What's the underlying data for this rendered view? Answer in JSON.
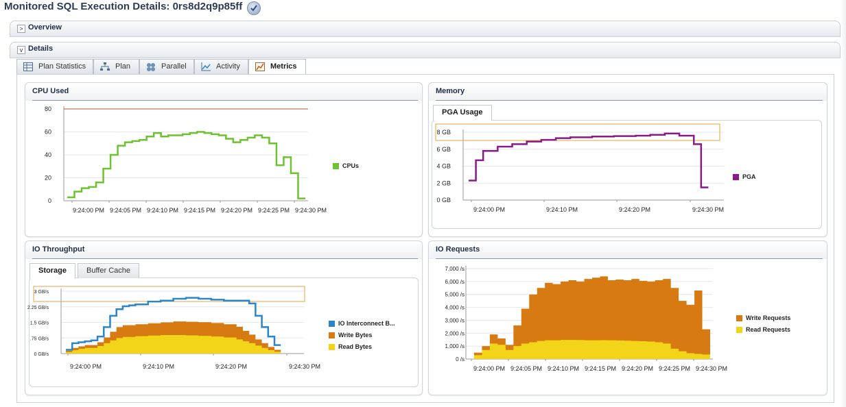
{
  "header": {
    "title": "Monitored SQL Execution Details: 0rs8d2q9p85ff",
    "status_icon": "check-icon"
  },
  "sections": {
    "overview": {
      "label": "Overview",
      "twisty": ">"
    },
    "details": {
      "label": "Details",
      "twisty": "v"
    }
  },
  "tabs": [
    {
      "label": "Plan Statistics",
      "icon": "table-icon"
    },
    {
      "label": "Plan",
      "icon": "tree-icon"
    },
    {
      "label": "Parallel",
      "icon": "parallel-icon"
    },
    {
      "label": "Activity",
      "icon": "line-chart-icon"
    },
    {
      "label": "Metrics",
      "icon": "metrics-icon",
      "active": true
    }
  ],
  "panels": {
    "cpu": {
      "title": "CPU Used"
    },
    "memory": {
      "title": "Memory",
      "subtabs": [
        "PGA Usage"
      ]
    },
    "io_throughput": {
      "title": "IO Throughput",
      "subtabs": [
        "Storage",
        "Buffer Cache"
      ]
    },
    "io_requests": {
      "title": "IO Requests"
    }
  },
  "colors": {
    "cpu_green": "#6cc22f",
    "cpu_limit": "#c0561f",
    "pga_purple": "#8a1a8a",
    "io_blue": "#2a86c9",
    "write_orange": "#d87a12",
    "read_yellow": "#f2d419",
    "highlight": "#e7a33c"
  },
  "chart_data": [
    {
      "type": "line",
      "panel": "CPU Used",
      "x": [
        "9:24:00 PM",
        "9:24:05 PM",
        "9:24:10 PM",
        "9:24:15 PM",
        "9:24:20 PM",
        "9:24:25 PM",
        "9:24:30 PM"
      ],
      "yticks": [
        "80",
        "60",
        "40",
        "20",
        "0"
      ],
      "ylim": [
        0,
        80
      ],
      "series": [
        {
          "name": "CPUs",
          "color": "#6cc22f",
          "points": [
            [
              -2,
              3
            ],
            [
              -1,
              8
            ],
            [
              0,
              11
            ],
            [
              1,
              12
            ],
            [
              2,
              16
            ],
            [
              3,
              28
            ],
            [
              4,
              40
            ],
            [
              5,
              48
            ],
            [
              6,
              51
            ],
            [
              7,
              52
            ],
            [
              8,
              53
            ],
            [
              9,
              56
            ],
            [
              10,
              59
            ],
            [
              11,
              56
            ],
            [
              12,
              57
            ],
            [
              13,
              57
            ],
            [
              14,
              58
            ],
            [
              15,
              59
            ],
            [
              16,
              60
            ],
            [
              17,
              59
            ],
            [
              18,
              58
            ],
            [
              19,
              57
            ],
            [
              20,
              54
            ],
            [
              21,
              51
            ],
            [
              22,
              53
            ],
            [
              23,
              55
            ],
            [
              24,
              57
            ],
            [
              25,
              55
            ],
            [
              26,
              50
            ],
            [
              27,
              31
            ],
            [
              28,
              38
            ],
            [
              29,
              24
            ],
            [
              30,
              2
            ],
            [
              31,
              2
            ]
          ]
        }
      ],
      "limit_line": 80
    },
    {
      "type": "line",
      "panel": "Memory",
      "x": [
        "9:24:00 PM",
        "9:24:10 PM",
        "9:24:20 PM",
        "9:24:30 PM"
      ],
      "yticks": [
        "8 GB",
        "6 GB",
        "4 GB",
        "2 GB",
        "0 GB"
      ],
      "ylim": [
        0,
        8
      ],
      "series": [
        {
          "name": "PGA",
          "color": "#8a1a8a",
          "points": [
            [
              -3,
              2.3
            ],
            [
              -2,
              4.7
            ],
            [
              -1,
              5.8
            ],
            [
              1,
              6.3
            ],
            [
              3,
              6.6
            ],
            [
              5,
              6.9
            ],
            [
              7,
              7.1
            ],
            [
              9,
              7.3
            ],
            [
              11,
              7.4
            ],
            [
              14,
              7.5
            ],
            [
              17,
              7.55
            ],
            [
              20,
              7.6
            ],
            [
              22,
              7.7
            ],
            [
              24,
              7.85
            ],
            [
              26,
              7.6
            ],
            [
              28,
              6.6
            ],
            [
              29,
              1.5
            ],
            [
              30,
              1.5
            ]
          ]
        }
      ]
    },
    {
      "type": "area",
      "panel": "IO Throughput",
      "subtab": "Storage",
      "x": [
        "9:24:00 PM",
        "9:24:10 PM",
        "9:24:20 PM",
        "9:24:30 PM"
      ],
      "yticks": [
        "3 GB/s",
        "2.25 GB/s",
        "1.5 GB/s",
        ".75 GB/s",
        "0 GB/s"
      ],
      "ylim": [
        0,
        3.3
      ],
      "series": [
        {
          "name": "IO Interconnect B...",
          "color": "#2a86c9",
          "points": [
            [
              -3,
              0.2
            ],
            [
              -2,
              0.55
            ],
            [
              -1,
              0.6
            ],
            [
              0,
              0.65
            ],
            [
              1,
              0.7
            ],
            [
              2,
              0.9
            ],
            [
              3,
              1.4
            ],
            [
              4,
              2.0
            ],
            [
              5,
              2.35
            ],
            [
              6,
              2.5
            ],
            [
              7,
              2.55
            ],
            [
              8,
              2.6
            ],
            [
              10,
              2.75
            ],
            [
              12,
              2.8
            ],
            [
              14,
              2.9
            ],
            [
              16,
              2.95
            ],
            [
              18,
              2.9
            ],
            [
              20,
              2.85
            ],
            [
              22,
              2.8
            ],
            [
              24,
              2.8
            ],
            [
              26,
              2.65
            ],
            [
              27,
              2.0
            ],
            [
              28,
              1.4
            ],
            [
              29,
              0.9
            ],
            [
              30,
              0.45
            ]
          ]
        },
        {
          "name": "Write Bytes",
          "color": "#d87a12",
          "points": [
            [
              -3,
              0.15
            ],
            [
              -2,
              0.3
            ],
            [
              -1,
              0.38
            ],
            [
              0,
              0.45
            ],
            [
              2,
              0.6
            ],
            [
              3,
              0.85
            ],
            [
              4,
              1.15
            ],
            [
              5,
              1.4
            ],
            [
              6,
              1.5
            ],
            [
              8,
              1.55
            ],
            [
              10,
              1.6
            ],
            [
              12,
              1.65
            ],
            [
              14,
              1.7
            ],
            [
              16,
              1.68
            ],
            [
              18,
              1.66
            ],
            [
              20,
              1.62
            ],
            [
              22,
              1.55
            ],
            [
              24,
              1.42
            ],
            [
              25,
              1.2
            ],
            [
              26,
              1.0
            ],
            [
              27,
              0.75
            ],
            [
              28,
              0.55
            ],
            [
              29,
              0.35
            ],
            [
              30,
              0.2
            ]
          ]
        },
        {
          "name": "Read Bytes",
          "color": "#f2d419",
          "points": [
            [
              -3,
              0.08
            ],
            [
              -2,
              0.18
            ],
            [
              -1,
              0.25
            ],
            [
              0,
              0.3
            ],
            [
              2,
              0.4
            ],
            [
              3,
              0.55
            ],
            [
              4,
              0.7
            ],
            [
              5,
              0.82
            ],
            [
              6,
              0.88
            ],
            [
              8,
              0.92
            ],
            [
              10,
              0.95
            ],
            [
              12,
              0.98
            ],
            [
              14,
              0.98
            ],
            [
              16,
              0.96
            ],
            [
              18,
              0.94
            ],
            [
              20,
              0.9
            ],
            [
              22,
              0.85
            ],
            [
              24,
              0.75
            ],
            [
              25,
              0.65
            ],
            [
              26,
              0.55
            ],
            [
              27,
              0.42
            ],
            [
              28,
              0.3
            ],
            [
              29,
              0.18
            ],
            [
              30,
              0.1
            ]
          ]
        }
      ]
    },
    {
      "type": "area",
      "panel": "IO Requests",
      "x": [
        "9:24:00 PM",
        "9:24:05 PM",
        "9:24:10 PM",
        "9:24:15 PM",
        "9:24:20 PM",
        "9:24:25 PM",
        "9:24:30 PM"
      ],
      "yticks": [
        "7,000 /s",
        "6,000 /s",
        "5,000 /s",
        "4,000 /s",
        "3,000 /s",
        "2,000 /s",
        "1,000 /s",
        "0 /s"
      ],
      "ylim": [
        0,
        7000
      ],
      "series": [
        {
          "name": "Write Requests",
          "color": "#d87a12",
          "points": [
            [
              -1,
              500
            ],
            [
              0,
              1000
            ],
            [
              1,
              1900
            ],
            [
              2,
              1600
            ],
            [
              3,
              1100
            ],
            [
              4,
              2600
            ],
            [
              5,
              3900
            ],
            [
              6,
              5000
            ],
            [
              7,
              5500
            ],
            [
              8,
              5900
            ],
            [
              9,
              5800
            ],
            [
              10,
              6000
            ],
            [
              11,
              6100
            ],
            [
              12,
              6000
            ],
            [
              13,
              6200
            ],
            [
              14,
              6300
            ],
            [
              15,
              6400
            ],
            [
              16,
              6100
            ],
            [
              17,
              6150
            ],
            [
              18,
              6100
            ],
            [
              19,
              6200
            ],
            [
              20,
              6050
            ],
            [
              21,
              6000
            ],
            [
              22,
              6100
            ],
            [
              23,
              6200
            ],
            [
              24,
              5500
            ],
            [
              25,
              4500
            ],
            [
              26,
              4200
            ],
            [
              27,
              5300
            ],
            [
              28,
              2300
            ]
          ]
        },
        {
          "name": "Read Requests",
          "color": "#f2d419",
          "points": [
            [
              -1,
              300
            ],
            [
              0,
              700
            ],
            [
              1,
              1200
            ],
            [
              2,
              1100
            ],
            [
              3,
              700
            ],
            [
              4,
              1000
            ],
            [
              5,
              1200
            ],
            [
              6,
              1300
            ],
            [
              7,
              1400
            ],
            [
              8,
              1450
            ],
            [
              9,
              1450
            ],
            [
              10,
              1480
            ],
            [
              11,
              1480
            ],
            [
              12,
              1470
            ],
            [
              13,
              1450
            ],
            [
              14,
              1450
            ],
            [
              15,
              1460
            ],
            [
              16,
              1450
            ],
            [
              17,
              1440
            ],
            [
              18,
              1420
            ],
            [
              19,
              1400
            ],
            [
              20,
              1380
            ],
            [
              21,
              1350
            ],
            [
              22,
              1300
            ],
            [
              23,
              1200
            ],
            [
              24,
              800
            ],
            [
              25,
              600
            ],
            [
              26,
              450
            ],
            [
              27,
              400
            ],
            [
              28,
              350
            ]
          ]
        }
      ]
    }
  ]
}
